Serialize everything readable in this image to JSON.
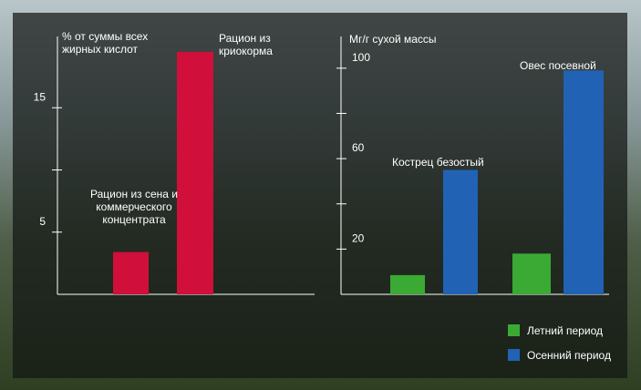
{
  "chart_data": [
    {
      "type": "bar",
      "ylabel": "% от суммы всех жирных кислот",
      "categories": [
        "Рацион из сена и коммерческого концентрата",
        "Рацион из криокорма"
      ],
      "values": [
        3.4,
        19.5
      ],
      "color": "#d0103a",
      "ylim": [
        0,
        20
      ],
      "yticks": [
        5,
        15
      ],
      "minor_yticks": [
        10
      ]
    },
    {
      "type": "grouped_bar",
      "ylabel": "Мг/г сухой массы",
      "categories": [
        "Кострец безостый",
        "Овес посевной"
      ],
      "series": [
        {
          "name": "Летний период",
          "color": "#3aaa35",
          "values": [
            8.5,
            18
          ]
        },
        {
          "name": "Осенний период",
          "color": "#2162b4",
          "values": [
            55,
            99
          ]
        }
      ],
      "ylim": [
        0,
        110
      ],
      "yticks": [
        20,
        60,
        100
      ],
      "minor_yticks": [
        40,
        80
      ],
      "legend": "bottom-right"
    }
  ]
}
